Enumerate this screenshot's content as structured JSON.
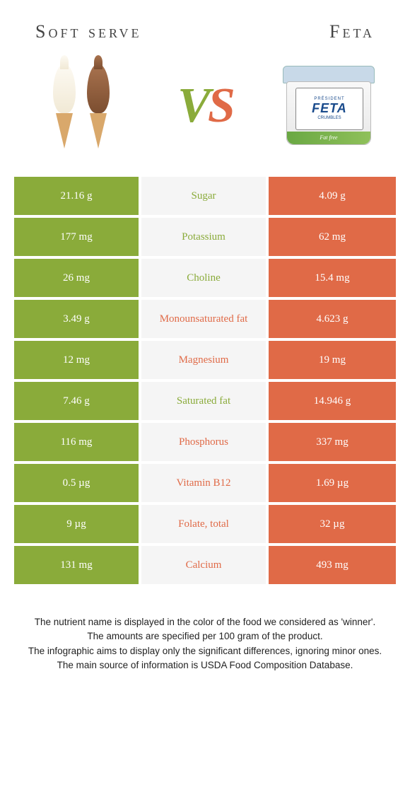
{
  "header": {
    "left_title": "Soft serve",
    "right_title": "Feta",
    "vs_v": "V",
    "vs_s": "S"
  },
  "colors": {
    "green": "#8aab3a",
    "orange": "#e06a47",
    "mid_bg": "#f5f5f5",
    "text_white": "#ffffff"
  },
  "tub": {
    "brand": "PRÉSIDENT",
    "big": "FETA",
    "small": "CRUMBLES",
    "strip": "Fat free"
  },
  "rows": [
    {
      "left": "21.16 g",
      "label": "Sugar",
      "right": "4.09 g",
      "winner": "left"
    },
    {
      "left": "177 mg",
      "label": "Potassium",
      "right": "62 mg",
      "winner": "left"
    },
    {
      "left": "26 mg",
      "label": "Choline",
      "right": "15.4 mg",
      "winner": "left"
    },
    {
      "left": "3.49 g",
      "label": "Monounsaturated fat",
      "right": "4.623 g",
      "winner": "right"
    },
    {
      "left": "12 mg",
      "label": "Magnesium",
      "right": "19 mg",
      "winner": "right"
    },
    {
      "left": "7.46 g",
      "label": "Saturated fat",
      "right": "14.946 g",
      "winner": "left"
    },
    {
      "left": "116 mg",
      "label": "Phosphorus",
      "right": "337 mg",
      "winner": "right"
    },
    {
      "left": "0.5 µg",
      "label": "Vitamin B12",
      "right": "1.69 µg",
      "winner": "right"
    },
    {
      "left": "9 µg",
      "label": "Folate, total",
      "right": "32 µg",
      "winner": "right"
    },
    {
      "left": "131 mg",
      "label": "Calcium",
      "right": "493 mg",
      "winner": "right"
    }
  ],
  "footnotes": [
    "The nutrient name is displayed in the color of the food we considered as 'winner'.",
    "The amounts are specified per 100 gram of the product.",
    "The infographic aims to display only the significant differences, ignoring minor ones.",
    "The main source of information is USDA Food Composition Database."
  ]
}
